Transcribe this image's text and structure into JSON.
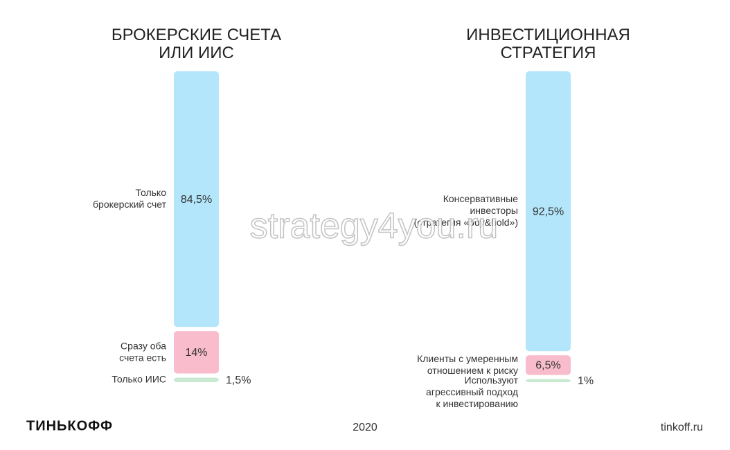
{
  "chart_data": [
    {
      "type": "stacked-bar",
      "title": "БРОКЕРСКИЕ СЧЕТА\nИЛИ ИИС",
      "series": [
        {
          "name": "Только\nброкерский счет",
          "color": "#b3e5fb",
          "values": [
            84.5
          ],
          "value_labels": [
            "84,5%"
          ]
        },
        {
          "name": "Сразу оба\nсчета есть",
          "color": "#f8bccc",
          "values": [
            14
          ],
          "value_labels": [
            "14%"
          ]
        },
        {
          "name": "Только ИИС",
          "color": "#c9ead0",
          "values": [
            1.5
          ],
          "value_labels": [
            "1,5%"
          ]
        }
      ]
    },
    {
      "type": "stacked-bar",
      "title": "ИНВЕСТИЦИОННАЯ\nСТРАТЕГИЯ",
      "series": [
        {
          "name": "Консервативные\nинвесторы\n(стратегия «buy&hold»)",
          "color": "#b3e5fb",
          "values": [
            92.5
          ],
          "value_labels": [
            "92,5%"
          ]
        },
        {
          "name": "Клиенты с умеренным\nотношением к риску",
          "color": "#f8bccc",
          "values": [
            6.5
          ],
          "value_labels": [
            "6,5%"
          ]
        },
        {
          "name": "Используют\nагрессивный подход\nк инвестированию",
          "color": "#c9ead0",
          "values": [
            1
          ],
          "value_labels": [
            "1%"
          ]
        }
      ]
    }
  ],
  "watermark": "strategy4you.ru",
  "footer": {
    "logo": "ТИНЬКОФФ",
    "year": "2020",
    "site": "tinkoff.ru"
  }
}
